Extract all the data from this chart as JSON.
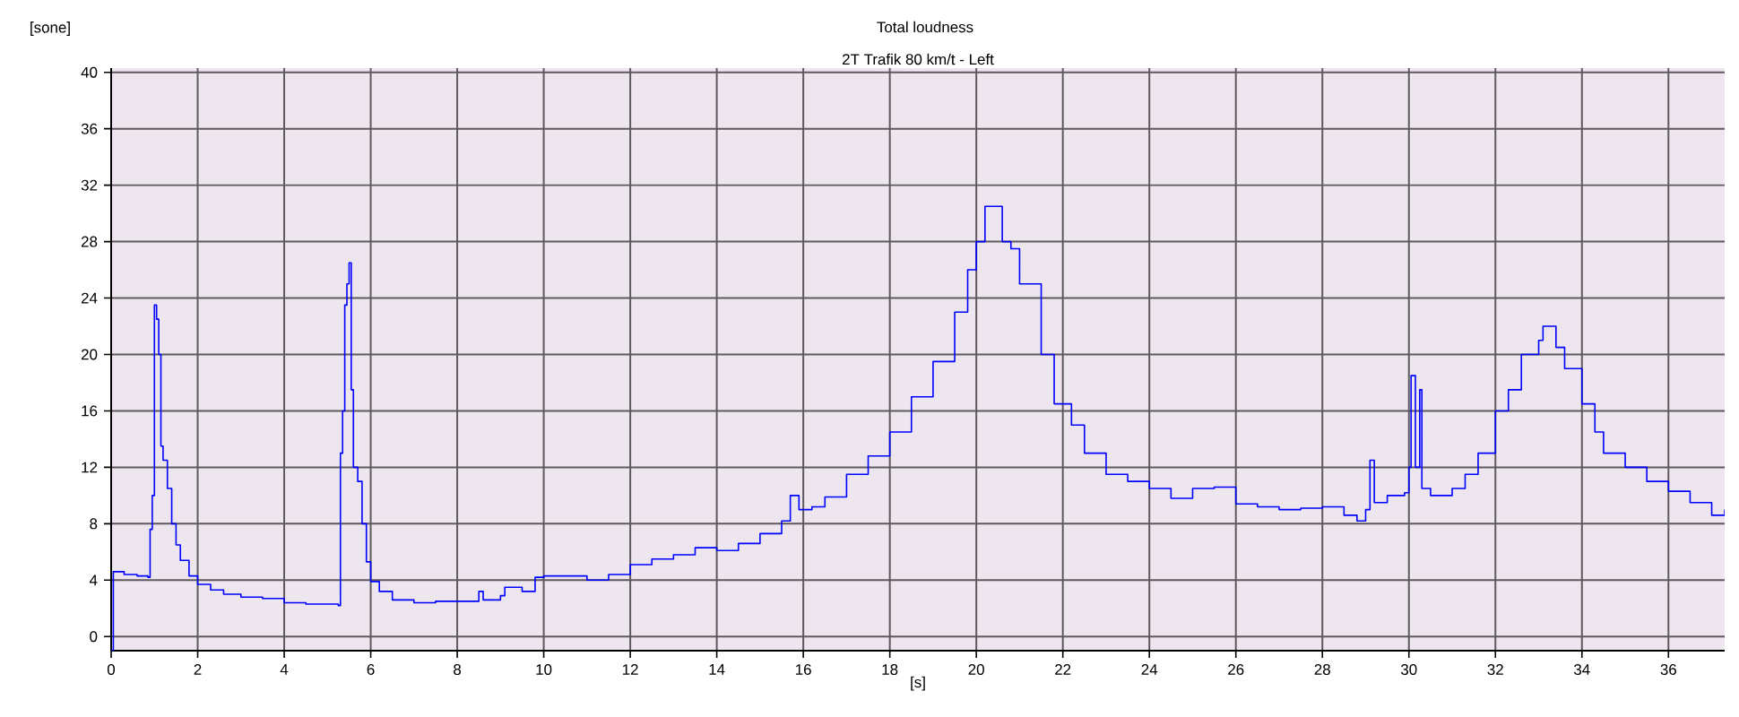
{
  "chart_data": {
    "type": "step",
    "title": "Total loudness",
    "subtitle": "2T Trafik 80 km/t - Left",
    "xlabel": "[s]",
    "ylabel": "[sone]",
    "xlim": [
      0,
      37.3
    ],
    "ylim": [
      -1,
      40.3
    ],
    "xticks": [
      0,
      2,
      4,
      6,
      8,
      10,
      12,
      14,
      16,
      18,
      20,
      22,
      24,
      26,
      28,
      30,
      32,
      34,
      36
    ],
    "yticks": [
      0,
      4,
      8,
      12,
      16,
      20,
      24,
      28,
      32,
      36,
      40
    ],
    "grid": true,
    "marker": "none",
    "line_style": "solid",
    "series": [
      {
        "color": "#0000ff",
        "x": [
          0,
          0.05,
          0.3,
          0.6,
          0.85,
          0.9,
          0.95,
          1.0,
          1.05,
          1.1,
          1.15,
          1.2,
          1.3,
          1.4,
          1.5,
          1.6,
          1.8,
          2.0,
          2.3,
          2.6,
          3.0,
          3.5,
          4.0,
          4.5,
          5.0,
          5.25,
          5.3,
          5.35,
          5.4,
          5.45,
          5.5,
          5.55,
          5.6,
          5.7,
          5.8,
          5.9,
          6.0,
          6.2,
          6.5,
          7,
          7.5,
          8,
          8.5,
          8.6,
          9,
          9.1,
          9.5,
          9.8,
          10,
          11,
          11.5,
          12,
          12.5,
          13,
          13.5,
          14,
          14.5,
          15,
          15.5,
          15.7,
          15.9,
          16.2,
          16.5,
          17,
          17.5,
          18,
          18.5,
          19,
          19.5,
          19.8,
          20.0,
          20.2,
          20.4,
          20.6,
          20.8,
          21,
          21.5,
          21.8,
          22.2,
          22.5,
          23,
          23.5,
          24,
          24.5,
          25,
          25.5,
          26,
          26.5,
          27,
          27.5,
          28,
          28.5,
          28.8,
          29.0,
          29.1,
          29.2,
          29.5,
          29.9,
          30.0,
          30.05,
          30.15,
          30.25,
          30.3,
          30.5,
          31,
          31.3,
          31.6,
          32,
          32.3,
          32.6,
          33,
          33.1,
          33.4,
          33.6,
          34,
          34.3,
          34.5,
          35,
          35.5,
          36,
          36.5,
          37,
          37.3
        ],
        "values": [
          -1,
          4.6,
          4.4,
          4.3,
          4.2,
          7.6,
          10,
          23.5,
          22.5,
          20,
          13.5,
          12.5,
          10.5,
          8,
          6.5,
          5.4,
          4.3,
          3.7,
          3.3,
          3.0,
          2.8,
          2.7,
          2.4,
          2.3,
          2.3,
          2.2,
          13,
          16,
          23.5,
          25,
          26.5,
          17.5,
          12,
          11,
          8,
          5.3,
          3.9,
          3.2,
          2.6,
          2.4,
          2.5,
          2.5,
          3.2,
          2.6,
          2.9,
          3.5,
          3.2,
          4.2,
          4.3,
          4.0,
          4.4,
          5.1,
          5.5,
          5.8,
          6.3,
          6.1,
          6.6,
          7.3,
          8.2,
          10,
          9.0,
          9.2,
          9.9,
          11.5,
          12.8,
          14.5,
          17,
          19.5,
          23,
          26,
          28,
          30.5,
          30.5,
          28,
          27.5,
          25,
          20,
          16.5,
          15,
          13,
          11.5,
          11,
          10.5,
          9.8,
          10.5,
          10.6,
          9.4,
          9.2,
          9.0,
          9.1,
          9.2,
          8.6,
          8.2,
          9.0,
          12.5,
          9.5,
          10,
          10.2,
          12,
          18.5,
          12,
          17.5,
          10.5,
          10.0,
          10.5,
          11.5,
          13,
          16,
          17.5,
          20,
          21,
          22,
          20.5,
          19,
          16.5,
          14.5,
          13,
          12,
          11,
          10.3,
          9.5,
          8.6,
          9.0
        ]
      }
    ]
  }
}
